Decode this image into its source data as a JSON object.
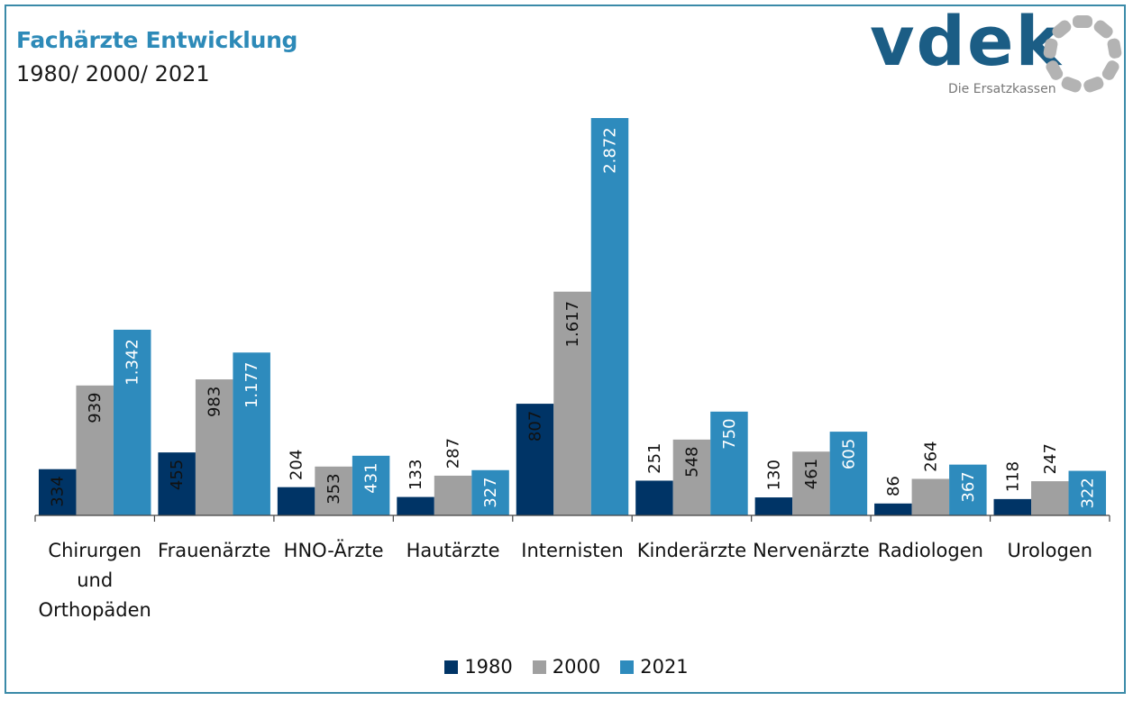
{
  "header": {
    "title": "Fachärzte Entwicklung",
    "subtitle": "1980/ 2000/ 2021"
  },
  "logo": {
    "wordmark": "vdek",
    "tagline": "Die Ersatzkassen",
    "colors": {
      "wordmark": "#1b5d85",
      "ring": "#b3b3b3"
    }
  },
  "chart_data": {
    "type": "bar",
    "categories": [
      [
        "Chirurgen",
        "und",
        "Orthopäden"
      ],
      [
        "Frauenärzte"
      ],
      [
        "HNO-Ärzte"
      ],
      [
        "Hautärzte"
      ],
      [
        "Internisten"
      ],
      [
        "Kinderärzte"
      ],
      [
        "Nervenärzte"
      ],
      [
        "Radiologen"
      ],
      [
        "Urologen"
      ]
    ],
    "series": [
      {
        "name": "1980",
        "color": "#003466",
        "label_color": "#111111",
        "values": [
          334,
          455,
          204,
          133,
          807,
          251,
          130,
          86,
          118
        ],
        "labels": [
          "334",
          "455",
          "204",
          "133",
          "807",
          "251",
          "130",
          "86",
          "118"
        ]
      },
      {
        "name": "2000",
        "color": "#a0a0a0",
        "label_color": "#111111",
        "values": [
          939,
          983,
          353,
          287,
          1617,
          548,
          461,
          264,
          247
        ],
        "labels": [
          "939",
          "983",
          "353",
          "287",
          "1.617",
          "548",
          "461",
          "264",
          "247"
        ]
      },
      {
        "name": "2021",
        "color": "#2e8bbd",
        "label_color": "#ffffff",
        "values": [
          1342,
          1177,
          431,
          327,
          2872,
          750,
          605,
          367,
          322
        ],
        "labels": [
          "1.342",
          "1.177",
          "431",
          "327",
          "2.872",
          "750",
          "605",
          "367",
          "322"
        ]
      }
    ],
    "ylim": [
      0,
      2872
    ],
    "grid": false,
    "legend_position": "bottom"
  }
}
